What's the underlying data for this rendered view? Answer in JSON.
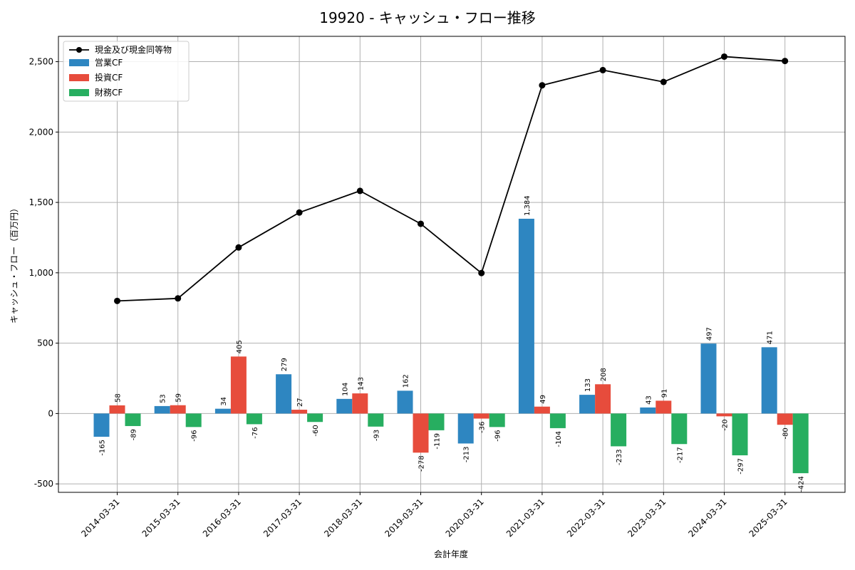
{
  "chart_data": {
    "type": "bar",
    "title": "19920 - キャッシュ・フロー推移",
    "xlabel": "会計年度",
    "ylabel": "キャッシュ・フロー（百万円）",
    "ylim": [
      -560,
      2680
    ],
    "yticks": [
      -500,
      0,
      500,
      1000,
      1500,
      2000,
      2500
    ],
    "ytick_labels": [
      "-500",
      "0",
      "500",
      "1,000",
      "1,500",
      "2,000",
      "2,500"
    ],
    "grid": true,
    "legend_position": "top-left",
    "categories": [
      "2014-03-31",
      "2015-03-31",
      "2016-03-31",
      "2017-03-31",
      "2018-03-31",
      "2019-03-31",
      "2020-03-31",
      "2021-03-31",
      "2022-03-31",
      "2023-03-31",
      "2024-03-31",
      "2025-03-31"
    ],
    "bar_series": [
      {
        "name": "営業CF",
        "color": "#2e86c1",
        "values": [
          -165,
          53,
          34,
          279,
          104,
          162,
          -213,
          1384,
          133,
          43,
          497,
          471
        ],
        "labels": [
          "-165",
          "53",
          "34",
          "279",
          "104",
          "162",
          "-213",
          "1,384",
          "133",
          "43",
          "497",
          "471"
        ]
      },
      {
        "name": "投資CF",
        "color": "#e74c3c",
        "values": [
          58,
          59,
          405,
          27,
          143,
          -278,
          -36,
          49,
          208,
          91,
          -20,
          -80
        ],
        "labels": [
          "58",
          "59",
          "405",
          "27",
          "143",
          "-278",
          "-36",
          "49",
          "208",
          "91",
          "-20",
          "-80"
        ]
      },
      {
        "name": "財務CF",
        "color": "#27ae60",
        "values": [
          -89,
          -96,
          -76,
          -60,
          -93,
          -119,
          -96,
          -104,
          -233,
          -217,
          -297,
          -424
        ],
        "labels": [
          "-89",
          "-96",
          "-76",
          "-60",
          "-93",
          "-119",
          "-96",
          "-104",
          "-233",
          "-217",
          "-297",
          "-424"
        ]
      }
    ],
    "line_series": {
      "name": "現金及び現金同等物",
      "color": "#000000",
      "values": [
        800,
        818,
        1180,
        1428,
        1582,
        1348,
        998,
        2332,
        2440,
        2356,
        2536,
        2505
      ]
    }
  }
}
